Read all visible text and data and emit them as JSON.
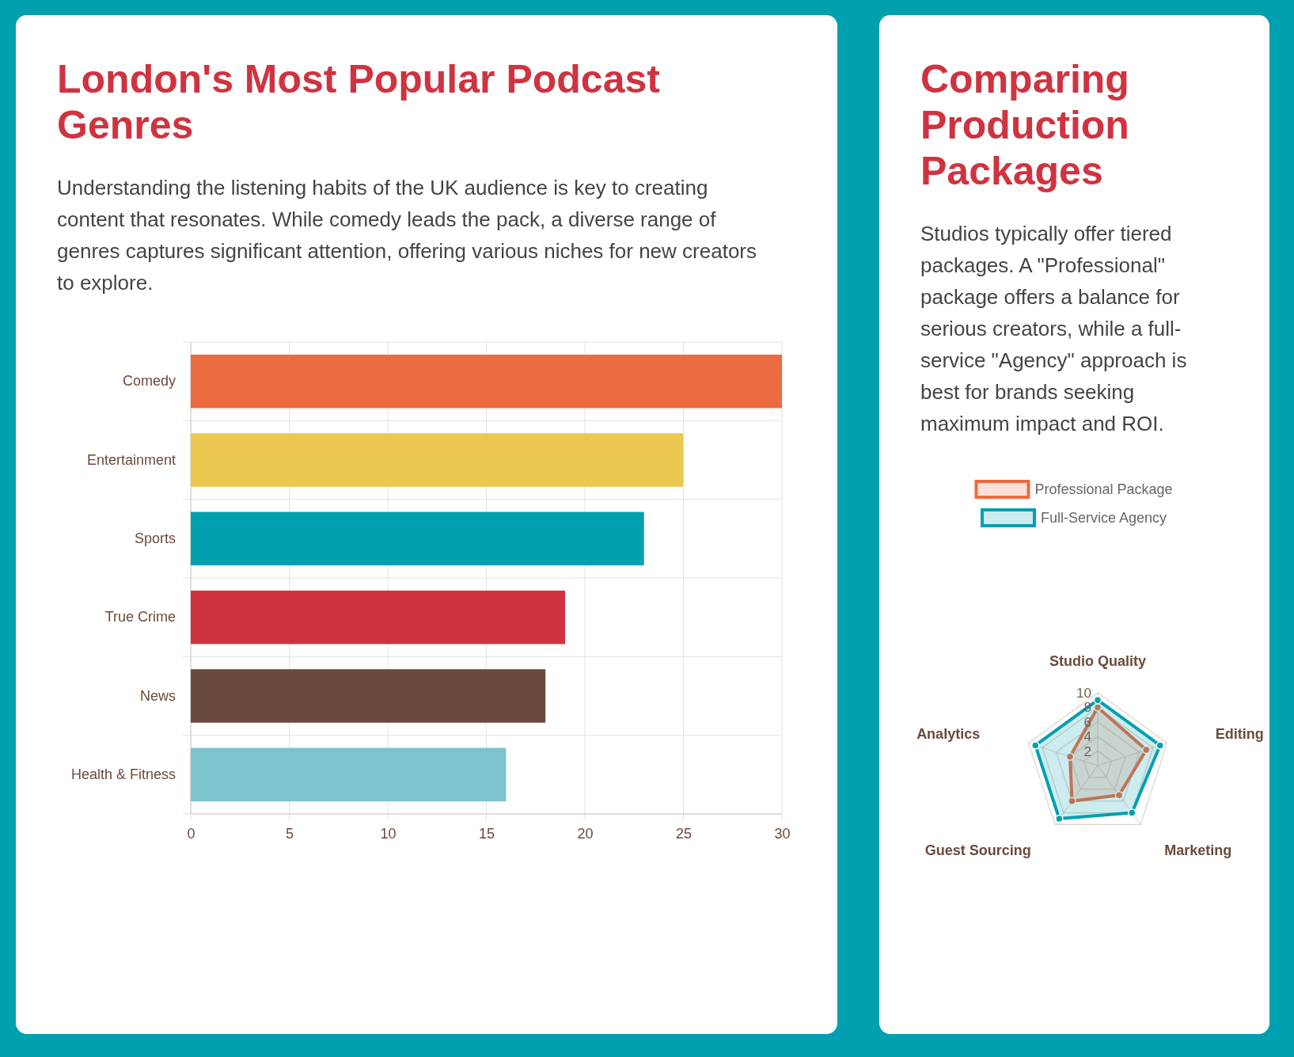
{
  "chart_data": [
    {
      "type": "bar",
      "title": "London's Most Popular Podcast Genres",
      "subtitle": "Understanding the listening habits of the UK audience is key to creating content that resonates. While comedy leads the pack, a diverse range of genres captures significant attention, offering various niches for new creators to explore.",
      "orientation": "horizontal",
      "categories": [
        "Comedy",
        "Entertainment",
        "Sports",
        "True Crime",
        "News",
        "Health & Fitness"
      ],
      "values": [
        30,
        25,
        23,
        19,
        18,
        16
      ],
      "colors": [
        "#eb6b40",
        "#ecc850",
        "#00a0b0",
        "#cf3340",
        "#6a4a3c",
        "#7dc3cc"
      ],
      "xlim": [
        0,
        30
      ],
      "xticks": [
        0,
        5,
        10,
        15,
        20,
        25,
        30
      ],
      "grid": true
    },
    {
      "type": "radar",
      "title": "Comparing Production Packages",
      "subtitle": "Studios typically offer tiered packages. A \"Professional\" package offers a balance for serious creators, while a full-service \"Agency\" approach is best for brands seeking maximum impact and ROI.",
      "categories": [
        "Studio Quality",
        "Editing",
        "Marketing",
        "Guest Sourcing",
        "Analytics"
      ],
      "series": [
        {
          "name": "Professional Package",
          "color": "#eb6b40",
          "values": [
            8,
            7,
            5,
            6,
            4
          ]
        },
        {
          "name": "Full-Service Agency",
          "color": "#00a0b0",
          "values": [
            9,
            9,
            8,
            9,
            9
          ]
        }
      ],
      "ylim": [
        0,
        10
      ],
      "yticks": [
        2,
        4,
        6,
        8,
        10
      ],
      "grid": true,
      "legend": "top",
      "marker": "circle"
    }
  ]
}
